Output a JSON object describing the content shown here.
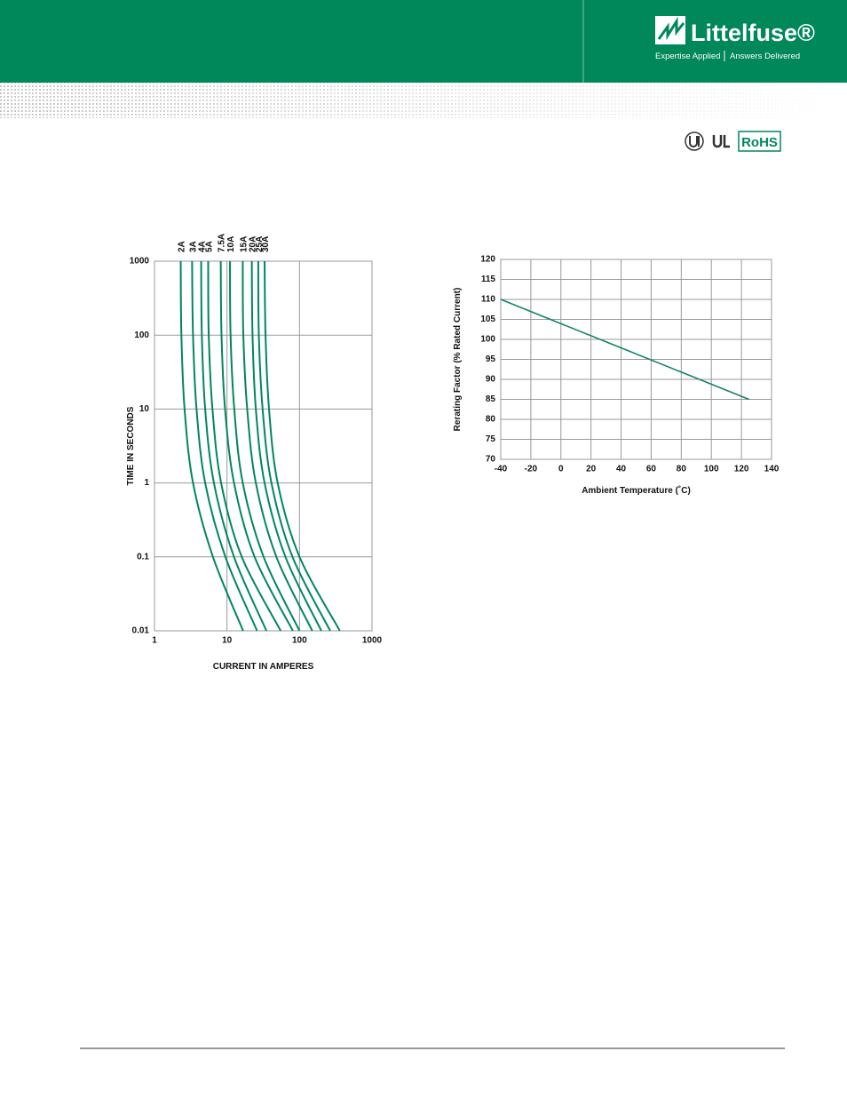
{
  "header": {
    "brand": "Littelfuse®",
    "tagline": [
      "Expertise Applied",
      "Answers Delivered"
    ],
    "certification": "RoHS"
  },
  "chart_data": [
    {
      "type": "line",
      "ylabel": "TIME IN SECONDS",
      "xlabel": "CURRENT IN AMPERES",
      "log_x": true,
      "log_y": true,
      "grid": true,
      "xlim": [
        1,
        1000
      ],
      "ylim": [
        0.01,
        1000
      ],
      "xticks": [
        1,
        10,
        100,
        1000
      ],
      "yticks": [
        0.01,
        0.1,
        1,
        10,
        100,
        1000
      ],
      "series": [
        {
          "name": "2A",
          "color": "#00875a",
          "x": [
            2.3,
            2.35,
            2.6,
            3.4,
            6.4,
            16.7
          ],
          "values": [
            1000,
            100,
            10,
            1,
            0.1,
            0.01
          ]
        },
        {
          "name": "3A",
          "color": "#00875a",
          "x": [
            3.3,
            3.4,
            3.8,
            5,
            9.5,
            26
          ],
          "values": [
            1000,
            100,
            10,
            1,
            0.1,
            0.01
          ]
        },
        {
          "name": "4A",
          "color": "#00875a",
          "x": [
            4.4,
            4.5,
            5,
            6.6,
            12.5,
            35
          ],
          "values": [
            1000,
            100,
            10,
            1,
            0.1,
            0.01
          ]
        },
        {
          "name": "5A",
          "color": "#00875a",
          "x": [
            5.5,
            5.6,
            6.3,
            8.3,
            16,
            55
          ],
          "values": [
            1000,
            100,
            10,
            1,
            0.1,
            0.01
          ]
        },
        {
          "name": "7.5A",
          "color": "#00875a",
          "x": [
            8.2,
            8.4,
            9.4,
            12.5,
            24,
            81
          ],
          "values": [
            1000,
            100,
            10,
            1,
            0.1,
            0.01
          ]
        },
        {
          "name": "10A",
          "color": "#00875a",
          "x": [
            11,
            11.2,
            12.6,
            16.5,
            32,
            100
          ],
          "values": [
            1000,
            100,
            10,
            1,
            0.1,
            0.01
          ]
        },
        {
          "name": "15A",
          "color": "#00875a",
          "x": [
            16.5,
            16.8,
            19,
            25,
            48,
            150
          ],
          "values": [
            1000,
            100,
            10,
            1,
            0.1,
            0.01
          ]
        },
        {
          "name": "20A",
          "color": "#00875a",
          "x": [
            22,
            22.5,
            25,
            33,
            64,
            200
          ],
          "values": [
            1000,
            100,
            10,
            1,
            0.1,
            0.01
          ]
        },
        {
          "name": "25A",
          "color": "#00875a",
          "x": [
            27,
            27.5,
            31,
            41,
            80,
            265
          ],
          "values": [
            1000,
            100,
            10,
            1,
            0.1,
            0.01
          ]
        },
        {
          "name": "30A",
          "color": "#00875a",
          "x": [
            33,
            34,
            38,
            50,
            100,
            360
          ],
          "values": [
            1000,
            100,
            10,
            1,
            0.1,
            0.01
          ]
        }
      ]
    },
    {
      "type": "line",
      "xlabel": "Ambient Temperature (˚C)",
      "ylabel": "Rerating Factor (% Rated Current)",
      "grid": true,
      "color": "#12875a",
      "x": [
        -40,
        125
      ],
      "values": [
        110,
        85
      ],
      "xlim": [
        -40,
        140
      ],
      "ylim": [
        70,
        120
      ],
      "xticks": [
        -40,
        -20,
        0,
        20,
        40,
        60,
        80,
        100,
        120,
        140
      ],
      "yticks": [
        70,
        75,
        80,
        85,
        90,
        95,
        100,
        105,
        110,
        115,
        120
      ]
    }
  ]
}
